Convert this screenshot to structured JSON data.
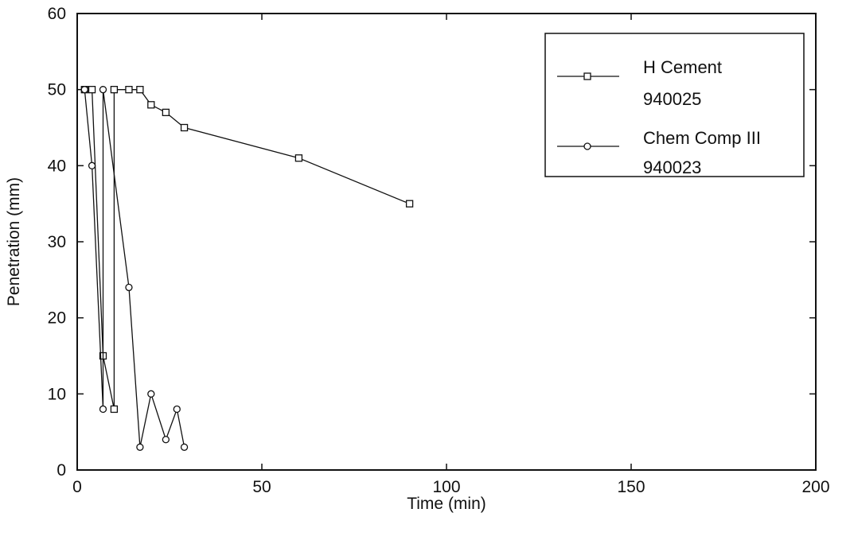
{
  "chart_data": {
    "type": "line",
    "xlabel": "Time (min)",
    "ylabel": "Penetration (mm)",
    "xlim": [
      0,
      200
    ],
    "ylim": [
      0,
      60
    ],
    "x_ticks": [
      0,
      50,
      100,
      150,
      200
    ],
    "y_ticks": [
      0,
      10,
      20,
      30,
      40,
      50,
      60
    ],
    "x_tick_labels": [
      "0",
      "50",
      "100",
      "150",
      "200"
    ],
    "y_tick_labels": [
      "0",
      "10",
      "20",
      "30",
      "40",
      "50",
      "60"
    ],
    "grid": false,
    "legend_position": "top-right",
    "series": [
      {
        "name": "H Cement",
        "name_line2": "940025",
        "marker": "square",
        "points": [
          [
            2,
            50
          ],
          [
            4,
            50
          ],
          [
            7,
            15
          ],
          [
            10,
            8
          ],
          [
            10,
            50
          ],
          [
            14,
            50
          ],
          [
            17,
            50
          ],
          [
            20,
            48
          ],
          [
            24,
            47
          ],
          [
            29,
            45
          ],
          [
            60,
            41
          ],
          [
            90,
            35
          ]
        ]
      },
      {
        "name": "Chem Comp III",
        "name_line2": "940023",
        "marker": "circle",
        "points": [
          [
            2,
            50
          ],
          [
            4,
            40
          ],
          [
            7,
            8
          ],
          [
            7,
            50
          ],
          [
            14,
            24
          ],
          [
            17,
            3
          ],
          [
            20,
            10
          ],
          [
            24,
            4
          ],
          [
            27,
            8
          ],
          [
            29,
            3
          ]
        ]
      }
    ],
    "colors": {
      "line": "#111111",
      "marker_fill": "#ffffff"
    }
  }
}
